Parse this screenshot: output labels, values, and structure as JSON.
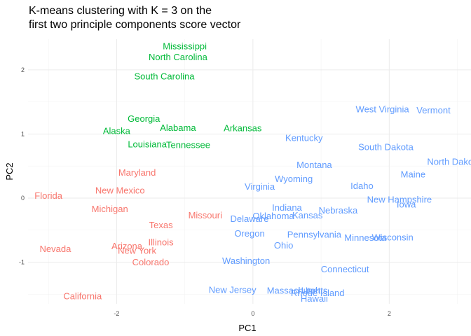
{
  "chart_data": {
    "type": "scatter",
    "title_lines": [
      "K-means clustering with K = 3 on the",
      "first two principle components score vector"
    ],
    "xlabel": "PC1",
    "ylabel": "PC2",
    "xlim": [
      -3.3,
      3.2
    ],
    "ylim": [
      -1.65,
      2.48
    ],
    "x_ticks": [
      {
        "value": -2,
        "label": "-2"
      },
      {
        "value": 0,
        "label": "0"
      },
      {
        "value": 2,
        "label": "2"
      }
    ],
    "y_ticks": [
      {
        "value": -1,
        "label": "-1"
      },
      {
        "value": 0,
        "label": "0"
      },
      {
        "value": 1,
        "label": "1"
      },
      {
        "value": 2,
        "label": "2"
      }
    ],
    "grid": true,
    "legend": "none",
    "cluster_colors": {
      "1": "#f8766d",
      "2": "#00ba38",
      "3": "#619cff"
    },
    "series": [
      {
        "cluster": "1",
        "points": [
          {
            "label": "Florida",
            "x": -3.0,
            "y": 0.04
          },
          {
            "label": "Nevada",
            "x": -2.9,
            "y": -0.79
          },
          {
            "label": "California",
            "x": -2.5,
            "y": -1.53
          },
          {
            "label": "Maryland",
            "x": -1.7,
            "y": 0.4
          },
          {
            "label": "New Mexico",
            "x": -1.95,
            "y": 0.12
          },
          {
            "label": "Michigan",
            "x": -2.1,
            "y": -0.17
          },
          {
            "label": "Arizona",
            "x": -1.85,
            "y": -0.75
          },
          {
            "label": "New York",
            "x": -1.7,
            "y": -0.82
          },
          {
            "label": "Illinois",
            "x": -1.35,
            "y": -0.69
          },
          {
            "label": "Colorado",
            "x": -1.5,
            "y": -1.0
          },
          {
            "label": "Texas",
            "x": -1.35,
            "y": -0.42
          },
          {
            "label": "Missouri",
            "x": -0.7,
            "y": -0.27
          }
        ]
      },
      {
        "cluster": "2",
        "points": [
          {
            "label": "Mississippi",
            "x": -1.0,
            "y": 2.37
          },
          {
            "label": "North Carolina",
            "x": -1.1,
            "y": 2.2
          },
          {
            "label": "South Carolina",
            "x": -1.3,
            "y": 1.9
          },
          {
            "label": "Georgia",
            "x": -1.6,
            "y": 1.24
          },
          {
            "label": "Alabama",
            "x": -1.1,
            "y": 1.1
          },
          {
            "label": "Alaska",
            "x": -2.0,
            "y": 1.05
          },
          {
            "label": "Arkansas",
            "x": -0.15,
            "y": 1.09
          },
          {
            "label": "Louisiana",
            "x": -1.55,
            "y": 0.84
          },
          {
            "label": "Tennessee",
            "x": -0.95,
            "y": 0.83
          }
        ]
      },
      {
        "cluster": "3",
        "points": [
          {
            "label": "West Virginia",
            "x": 1.9,
            "y": 1.39
          },
          {
            "label": "Vermont",
            "x": 2.65,
            "y": 1.37
          },
          {
            "label": "Kentucky",
            "x": 0.75,
            "y": 0.94
          },
          {
            "label": "South Dakota",
            "x": 1.95,
            "y": 0.8
          },
          {
            "label": "North Dakota",
            "x": 2.95,
            "y": 0.57
          },
          {
            "label": "Montana",
            "x": 0.9,
            "y": 0.52
          },
          {
            "label": "Maine",
            "x": 2.35,
            "y": 0.37
          },
          {
            "label": "Wyoming",
            "x": 0.6,
            "y": 0.3
          },
          {
            "label": "Virginia",
            "x": 0.1,
            "y": 0.18
          },
          {
            "label": "Idaho",
            "x": 1.6,
            "y": 0.19
          },
          {
            "label": "New Hampshire",
            "x": 2.15,
            "y": -0.02
          },
          {
            "label": "Iowa",
            "x": 2.25,
            "y": -0.1
          },
          {
            "label": "Indiana",
            "x": 0.5,
            "y": -0.15
          },
          {
            "label": "Nebraska",
            "x": 1.25,
            "y": -0.19
          },
          {
            "label": "Kansas",
            "x": 0.8,
            "y": -0.27
          },
          {
            "label": "Oklahoma",
            "x": 0.3,
            "y": -0.28
          },
          {
            "label": "Delaware",
            "x": -0.05,
            "y": -0.32
          },
          {
            "label": "Oregon",
            "x": -0.05,
            "y": -0.55
          },
          {
            "label": "Pennsylvania",
            "x": 0.9,
            "y": -0.57
          },
          {
            "label": "Wisconsin",
            "x": 2.05,
            "y": -0.61
          },
          {
            "label": "Minnesota",
            "x": 1.65,
            "y": -0.62
          },
          {
            "label": "Ohio",
            "x": 0.45,
            "y": -0.74
          },
          {
            "label": "Washington",
            "x": -0.1,
            "y": -0.98
          },
          {
            "label": "Connecticut",
            "x": 1.35,
            "y": -1.11
          },
          {
            "label": "New Jersey",
            "x": -0.3,
            "y": -1.43
          },
          {
            "label": "Massachusetts",
            "x": 0.65,
            "y": -1.44
          },
          {
            "label": "Utah",
            "x": 0.85,
            "y": -1.44
          },
          {
            "label": "Rhode Island",
            "x": 0.95,
            "y": -1.48
          },
          {
            "label": "Hawaii",
            "x": 0.9,
            "y": -1.57
          }
        ]
      }
    ]
  }
}
